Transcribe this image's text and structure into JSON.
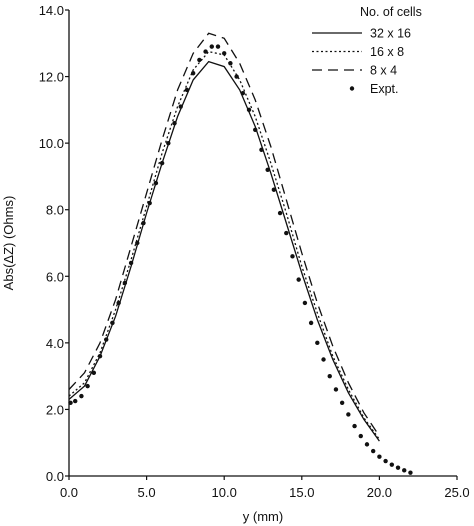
{
  "chart_data": {
    "type": "line",
    "title": "",
    "xlabel": "y (mm)",
    "ylabel": "Abs(ΔZ) (Ohms)",
    "xlim": [
      0,
      25
    ],
    "ylim": [
      0,
      14
    ],
    "x_ticks": [
      "0.0",
      "5.0",
      "10.0",
      "15.0",
      "20.0",
      "25.0"
    ],
    "y_ticks": [
      "0.0",
      "2.0",
      "4.0",
      "6.0",
      "8.0",
      "10.0",
      "12.0",
      "14.0"
    ],
    "grid": false,
    "legend": {
      "title": "No. of cells",
      "placement": "top-right"
    },
    "series": [
      {
        "name": "32 x 16",
        "style": "solid",
        "points": [
          [
            0,
            2.3
          ],
          [
            1,
            2.7
          ],
          [
            2,
            3.6
          ],
          [
            3,
            4.8
          ],
          [
            4,
            6.3
          ],
          [
            5,
            7.9
          ],
          [
            6,
            9.4
          ],
          [
            7,
            10.8
          ],
          [
            8,
            11.9
          ],
          [
            9,
            12.45
          ],
          [
            10,
            12.3
          ],
          [
            11,
            11.6
          ],
          [
            12,
            10.5
          ],
          [
            13,
            9.1
          ],
          [
            14,
            7.6
          ],
          [
            15,
            6.1
          ],
          [
            16,
            4.7
          ],
          [
            17,
            3.5
          ],
          [
            18,
            2.5
          ],
          [
            19,
            1.7
          ],
          [
            20,
            1.05
          ]
        ]
      },
      {
        "name": "16 x 8",
        "style": "dotted",
        "points": [
          [
            0,
            2.4
          ],
          [
            1,
            2.8
          ],
          [
            2,
            3.7
          ],
          [
            3,
            5.0
          ],
          [
            4,
            6.5
          ],
          [
            5,
            8.1
          ],
          [
            6,
            9.7
          ],
          [
            7,
            11.1
          ],
          [
            8,
            12.2
          ],
          [
            9,
            12.75
          ],
          [
            10,
            12.65
          ],
          [
            11,
            11.9
          ],
          [
            12,
            10.8
          ],
          [
            13,
            9.4
          ],
          [
            14,
            7.9
          ],
          [
            15,
            6.3
          ],
          [
            16,
            4.9
          ],
          [
            17,
            3.6
          ],
          [
            18,
            2.6
          ],
          [
            19,
            1.75
          ],
          [
            20,
            1.1
          ]
        ]
      },
      {
        "name": "8 x 4",
        "style": "dashed",
        "points": [
          [
            0,
            2.6
          ],
          [
            1,
            3.1
          ],
          [
            2,
            4.0
          ],
          [
            3,
            5.3
          ],
          [
            4,
            6.9
          ],
          [
            5,
            8.5
          ],
          [
            6,
            10.1
          ],
          [
            7,
            11.6
          ],
          [
            8,
            12.7
          ],
          [
            9,
            13.3
          ],
          [
            10,
            13.15
          ],
          [
            11,
            12.4
          ],
          [
            12,
            11.3
          ],
          [
            13,
            9.9
          ],
          [
            14,
            8.3
          ],
          [
            15,
            6.7
          ],
          [
            16,
            5.2
          ],
          [
            17,
            3.9
          ],
          [
            18,
            2.8
          ],
          [
            19,
            1.9
          ],
          [
            20,
            1.2
          ]
        ]
      },
      {
        "name": "Expt.",
        "style": "markers",
        "points": [
          [
            0.1,
            2.2
          ],
          [
            0.4,
            2.25
          ],
          [
            0.8,
            2.4
          ],
          [
            1.2,
            2.7
          ],
          [
            1.6,
            3.1
          ],
          [
            2.0,
            3.6
          ],
          [
            2.4,
            4.1
          ],
          [
            2.8,
            4.6
          ],
          [
            3.2,
            5.2
          ],
          [
            3.6,
            5.8
          ],
          [
            4.0,
            6.4
          ],
          [
            4.4,
            7.0
          ],
          [
            4.8,
            7.6
          ],
          [
            5.2,
            8.2
          ],
          [
            5.6,
            8.8
          ],
          [
            6.0,
            9.4
          ],
          [
            6.4,
            10.0
          ],
          [
            6.8,
            10.6
          ],
          [
            7.2,
            11.1
          ],
          [
            7.6,
            11.6
          ],
          [
            8.0,
            12.1
          ],
          [
            8.4,
            12.5
          ],
          [
            8.8,
            12.75
          ],
          [
            9.2,
            12.9
          ],
          [
            9.6,
            12.9
          ],
          [
            10.0,
            12.7
          ],
          [
            10.4,
            12.4
          ],
          [
            10.8,
            12.0
          ],
          [
            11.2,
            11.5
          ],
          [
            11.6,
            11.0
          ],
          [
            12.0,
            10.4
          ],
          [
            12.4,
            9.8
          ],
          [
            12.8,
            9.2
          ],
          [
            13.2,
            8.6
          ],
          [
            13.6,
            7.9
          ],
          [
            14.0,
            7.3
          ],
          [
            14.4,
            6.6
          ],
          [
            14.8,
            5.9
          ],
          [
            15.2,
            5.2
          ],
          [
            15.6,
            4.6
          ],
          [
            16.0,
            4.0
          ],
          [
            16.4,
            3.5
          ],
          [
            16.8,
            3.0
          ],
          [
            17.2,
            2.6
          ],
          [
            17.6,
            2.2
          ],
          [
            18.0,
            1.85
          ],
          [
            18.4,
            1.5
          ],
          [
            18.8,
            1.2
          ],
          [
            19.2,
            0.95
          ],
          [
            19.6,
            0.75
          ],
          [
            20.0,
            0.58
          ],
          [
            20.4,
            0.45
          ],
          [
            20.8,
            0.34
          ],
          [
            21.2,
            0.25
          ],
          [
            21.6,
            0.17
          ],
          [
            22.0,
            0.1
          ]
        ]
      }
    ]
  }
}
